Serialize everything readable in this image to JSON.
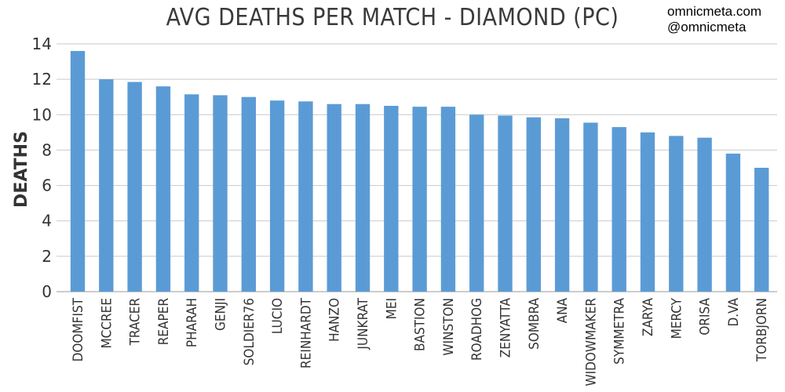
{
  "credits": [
    "omnicmeta.com",
    "@omnicmeta"
  ],
  "chart_data": {
    "type": "bar",
    "title": "AVG DEATHS PER MATCH - DIAMOND (PC)",
    "xlabel": "",
    "ylabel": "DEATHS",
    "ylim": [
      0,
      14
    ],
    "yticks": [
      0,
      2,
      4,
      6,
      8,
      10,
      12,
      14
    ],
    "grid": true,
    "bar_color": "#5b9bd5",
    "categories": [
      "DOOMFIST",
      "MCCREE",
      "TRACER",
      "REAPER",
      "PHARAH",
      "GENJI",
      "SOLDIER76",
      "LUCIO",
      "REINHARDT",
      "HANZO",
      "JUNKRAT",
      "MEI",
      "BASTION",
      "WINSTON",
      "ROADHOG",
      "ZENYATTA",
      "SOMBRA",
      "ANA",
      "WIDOWMAKER",
      "SYMMETRA",
      "ZARYA",
      "MERCY",
      "ORISA",
      "D.VA",
      "TORBJORN"
    ],
    "values": [
      13.6,
      12.0,
      11.85,
      11.6,
      11.15,
      11.1,
      11.0,
      10.8,
      10.75,
      10.6,
      10.6,
      10.5,
      10.45,
      10.45,
      10.0,
      9.95,
      9.85,
      9.8,
      9.55,
      9.3,
      9.0,
      8.8,
      8.7,
      7.8,
      7.0
    ]
  }
}
